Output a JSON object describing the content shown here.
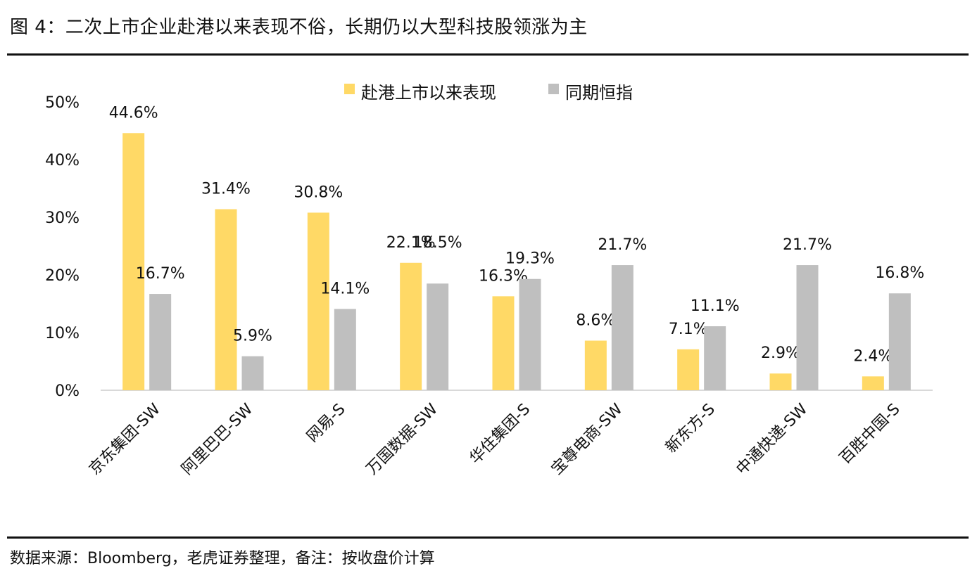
{
  "page": {
    "title": "图 4：二次上市企业赴港以来表现不俗，长期仍以大型科技股领涨为主",
    "source": "数据来源：Bloomberg，老虎证券整理，备注：按收盘价计算"
  },
  "chart_data": {
    "type": "bar",
    "title": "",
    "xlabel": "",
    "ylabel": "",
    "ylim": [
      0,
      50
    ],
    "yticks": [
      "0%",
      "10%",
      "20%",
      "30%",
      "40%",
      "50%"
    ],
    "grid": false,
    "legend_position": "top-center",
    "categories": [
      "京东集团-SW",
      "阿里巴巴-SW",
      "网易-S",
      "万国数据-SW",
      "华住集团-S",
      "宝尊电商-SW",
      "新东方-S",
      "中通快递-SW",
      "百胜中国-S"
    ],
    "series": [
      {
        "name": "赴港上市以来表现",
        "color": "#FFD966",
        "values": [
          44.6,
          31.4,
          30.8,
          22.1,
          16.3,
          8.6,
          7.1,
          2.9,
          2.4
        ],
        "labels": [
          "44.6%",
          "31.4%",
          "30.8%",
          "22.1%",
          "16.3%",
          "8.6%",
          "7.1%",
          "2.9%",
          "2.4%"
        ]
      },
      {
        "name": "同期恒指",
        "color": "#BFBFBF",
        "values": [
          16.7,
          5.9,
          14.1,
          18.5,
          19.3,
          21.7,
          11.1,
          21.7,
          16.8
        ],
        "labels": [
          "16.7%",
          "5.9%",
          "14.1%",
          "18.5%",
          "19.3%",
          "21.7%",
          "11.1%",
          "21.7%",
          "16.8%"
        ]
      }
    ]
  }
}
